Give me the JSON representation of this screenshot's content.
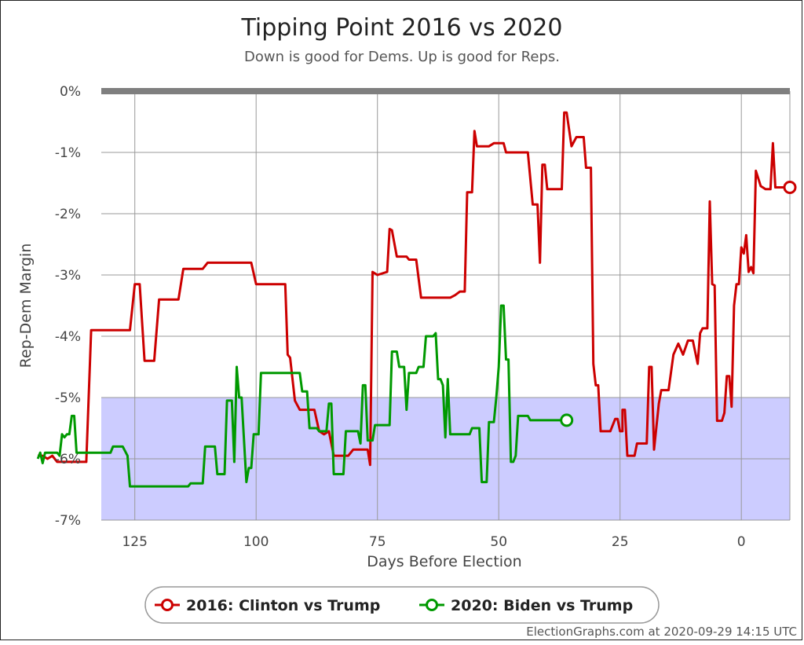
{
  "chart_data": {
    "type": "line",
    "title": "Tipping Point 2016 vs 2020",
    "subtitle": "Down is good for Dems. Up is good for Reps.",
    "xlabel": "Days Before Election",
    "ylabel": "Rep-Dem Margin",
    "xlim": [
      145,
      0
    ],
    "ylim": [
      -7,
      0
    ],
    "x_ticks": [
      {
        "value": 125,
        "label": "125"
      },
      {
        "value": 100,
        "label": "100"
      },
      {
        "value": 75,
        "label": "75"
      },
      {
        "value": 50,
        "label": "50"
      },
      {
        "value": 25,
        "label": "25"
      },
      {
        "value": 0,
        "label": "0"
      }
    ],
    "y_ticks": [
      {
        "value": 0,
        "label": "0%"
      },
      {
        "value": -1,
        "label": "-1%"
      },
      {
        "value": -2,
        "label": "-2%"
      },
      {
        "value": -3,
        "label": "-3%"
      },
      {
        "value": -4,
        "label": "-4%"
      },
      {
        "value": -5,
        "label": "-5%"
      },
      {
        "value": -6,
        "label": "-6%"
      },
      {
        "value": -7,
        "label": "-7%"
      }
    ],
    "shaded_band": {
      "from": -5,
      "to": -7,
      "color": "#ccccff"
    },
    "zero_line_color": "#7f7f7f",
    "grid": true,
    "legend_position": "bottom-center",
    "series": [
      {
        "name": "2016: Clinton vs Trump",
        "color": "#cc0000",
        "points": [
          [
            145,
            -5.95
          ],
          [
            144,
            -5.95
          ],
          [
            143,
            -6.0
          ],
          [
            142,
            -5.95
          ],
          [
            141,
            -6.05
          ],
          [
            140,
            -6.05
          ],
          [
            138,
            -6.05
          ],
          [
            137,
            -6.05
          ],
          [
            135,
            -6.05
          ],
          [
            134,
            -3.9
          ],
          [
            131,
            -3.9
          ],
          [
            127,
            -3.9
          ],
          [
            126,
            -3.9
          ],
          [
            125,
            -3.15
          ],
          [
            124,
            -3.15
          ],
          [
            123,
            -4.4
          ],
          [
            122,
            -4.4
          ],
          [
            121,
            -4.4
          ],
          [
            120,
            -3.4
          ],
          [
            119,
            -3.4
          ],
          [
            116,
            -3.4
          ],
          [
            115,
            -2.9
          ],
          [
            112,
            -2.9
          ],
          [
            111,
            -2.9
          ],
          [
            110,
            -2.8
          ],
          [
            105,
            -2.8
          ],
          [
            101,
            -2.8
          ],
          [
            100,
            -3.15
          ],
          [
            94,
            -3.15
          ],
          [
            93.5,
            -4.3
          ],
          [
            93,
            -4.35
          ],
          [
            92,
            -5.05
          ],
          [
            91,
            -5.2
          ],
          [
            88,
            -5.2
          ],
          [
            87,
            -5.55
          ],
          [
            86,
            -5.6
          ],
          [
            85,
            -5.55
          ],
          [
            84,
            -5.95
          ],
          [
            81,
            -5.95
          ],
          [
            80,
            -5.85
          ],
          [
            77,
            -5.85
          ],
          [
            76.5,
            -6.1
          ],
          [
            76,
            -2.95
          ],
          [
            75,
            -3.0
          ],
          [
            73,
            -2.95
          ],
          [
            72.5,
            -2.25
          ],
          [
            72,
            -2.27
          ],
          [
            71,
            -2.7
          ],
          [
            69,
            -2.7
          ],
          [
            68.5,
            -2.75
          ],
          [
            67,
            -2.75
          ],
          [
            66,
            -3.37
          ],
          [
            60,
            -3.37
          ],
          [
            59,
            -3.33
          ],
          [
            58,
            -3.27
          ],
          [
            57,
            -3.27
          ],
          [
            56.5,
            -1.65
          ],
          [
            55.5,
            -1.65
          ],
          [
            55,
            -0.65
          ],
          [
            54.5,
            -0.9
          ],
          [
            52,
            -0.9
          ],
          [
            51,
            -0.85
          ],
          [
            49,
            -0.85
          ],
          [
            48.5,
            -1.0
          ],
          [
            46,
            -1.0
          ],
          [
            45,
            -1.0
          ],
          [
            44,
            -1.0
          ],
          [
            43,
            -1.85
          ],
          [
            42,
            -1.85
          ],
          [
            41.5,
            -2.8
          ],
          [
            41,
            -1.2
          ],
          [
            40.5,
            -1.2
          ],
          [
            40,
            -1.6
          ],
          [
            37,
            -1.6
          ],
          [
            36.5,
            -0.35
          ],
          [
            36,
            -0.35
          ],
          [
            35,
            -0.9
          ],
          [
            34,
            -0.75
          ],
          [
            32.5,
            -0.75
          ],
          [
            32,
            -1.25
          ],
          [
            31,
            -1.25
          ],
          [
            30.5,
            -4.45
          ],
          [
            30,
            -4.8
          ],
          [
            29.5,
            -4.8
          ],
          [
            29,
            -5.55
          ],
          [
            27.5,
            -5.55
          ],
          [
            27,
            -5.55
          ],
          [
            26,
            -5.35
          ],
          [
            25.5,
            -5.35
          ],
          [
            25,
            -5.55
          ],
          [
            24.5,
            -5.55
          ],
          [
            24.5,
            -5.2
          ],
          [
            24,
            -5.2
          ],
          [
            23.5,
            -5.95
          ],
          [
            22,
            -5.95
          ],
          [
            21.5,
            -5.75
          ],
          [
            19.5,
            -5.75
          ],
          [
            19,
            -4.5
          ],
          [
            18.5,
            -4.5
          ],
          [
            18,
            -5.85
          ],
          [
            17,
            -5.1
          ],
          [
            16.5,
            -4.88
          ],
          [
            15,
            -4.88
          ],
          [
            14,
            -4.3
          ],
          [
            13,
            -4.12
          ],
          [
            12,
            -4.3
          ],
          [
            11,
            -4.07
          ],
          [
            10,
            -4.07
          ],
          [
            9,
            -4.45
          ],
          [
            8.5,
            -3.95
          ],
          [
            8,
            -3.87
          ],
          [
            7.5,
            -3.87
          ],
          [
            7,
            -3.87
          ],
          [
            6.5,
            -1.8
          ],
          [
            6,
            -3.15
          ],
          [
            5.5,
            -3.17
          ],
          [
            5,
            -5.38
          ],
          [
            4,
            -5.38
          ],
          [
            3.5,
            -5.25
          ],
          [
            3,
            -4.65
          ],
          [
            2.5,
            -4.65
          ],
          [
            2,
            -5.15
          ],
          [
            1.5,
            -3.5
          ],
          [
            1,
            -3.15
          ],
          [
            0.5,
            -3.15
          ],
          [
            0,
            -2.55
          ],
          [
            -0.5,
            -2.65
          ],
          [
            -1,
            -2.35
          ],
          [
            -1.5,
            -2.95
          ],
          [
            -2,
            -2.87
          ],
          [
            -2.5,
            -2.97
          ],
          [
            -3,
            -1.3
          ],
          [
            -4,
            -1.55
          ],
          [
            -5,
            -1.6
          ],
          [
            -6,
            -1.6
          ],
          [
            -6.5,
            -0.85
          ],
          [
            -7,
            -1.57
          ],
          [
            -9,
            -1.57
          ],
          [
            -10,
            -1.57
          ]
        ],
        "end_marker": [
          -10,
          -1.57
        ]
      },
      {
        "name": "2020: Biden vs Trump",
        "color": "#009900",
        "points": [
          [
            145,
            -6.0
          ],
          [
            144.5,
            -5.9
          ],
          [
            144,
            -6.07
          ],
          [
            143.5,
            -5.9
          ],
          [
            141,
            -5.9
          ],
          [
            140.5,
            -5.95
          ],
          [
            140,
            -5.6
          ],
          [
            139.5,
            -5.65
          ],
          [
            139,
            -5.6
          ],
          [
            138.5,
            -5.6
          ],
          [
            138,
            -5.3
          ],
          [
            137.5,
            -5.3
          ],
          [
            137,
            -5.9
          ],
          [
            132,
            -5.9
          ],
          [
            130,
            -5.9
          ],
          [
            129.5,
            -5.8
          ],
          [
            127.5,
            -5.8
          ],
          [
            126.5,
            -5.95
          ],
          [
            126,
            -6.45
          ],
          [
            120,
            -6.45
          ],
          [
            114,
            -6.45
          ],
          [
            113.5,
            -6.4
          ],
          [
            111,
            -6.4
          ],
          [
            110.5,
            -5.8
          ],
          [
            108.5,
            -5.8
          ],
          [
            108,
            -6.25
          ],
          [
            106.5,
            -6.25
          ],
          [
            106,
            -5.05
          ],
          [
            105,
            -5.05
          ],
          [
            104.5,
            -6.05
          ],
          [
            104,
            -4.5
          ],
          [
            103.5,
            -5.0
          ],
          [
            103,
            -5.0
          ],
          [
            102,
            -6.38
          ],
          [
            101.5,
            -6.15
          ],
          [
            101,
            -6.15
          ],
          [
            100.5,
            -5.6
          ],
          [
            99.5,
            -5.6
          ],
          [
            99,
            -4.6
          ],
          [
            98,
            -4.6
          ],
          [
            91,
            -4.6
          ],
          [
            90.5,
            -4.9
          ],
          [
            89.5,
            -4.9
          ],
          [
            89,
            -5.5
          ],
          [
            87.5,
            -5.5
          ],
          [
            87,
            -5.55
          ],
          [
            85.5,
            -5.55
          ],
          [
            85,
            -5.1
          ],
          [
            84.5,
            -5.1
          ],
          [
            84,
            -6.25
          ],
          [
            83.5,
            -6.25
          ],
          [
            82,
            -6.25
          ],
          [
            81.5,
            -5.55
          ],
          [
            80,
            -5.55
          ],
          [
            79,
            -5.55
          ],
          [
            78.5,
            -5.75
          ],
          [
            78,
            -4.8
          ],
          [
            77.5,
            -4.8
          ],
          [
            77,
            -5.7
          ],
          [
            76,
            -5.7
          ],
          [
            75.5,
            -5.45
          ],
          [
            72.5,
            -5.45
          ],
          [
            72,
            -4.25
          ],
          [
            71,
            -4.25
          ],
          [
            70.5,
            -4.5
          ],
          [
            69.5,
            -4.5
          ],
          [
            69,
            -5.2
          ],
          [
            68.5,
            -4.6
          ],
          [
            67.5,
            -4.6
          ],
          [
            67,
            -4.6
          ],
          [
            66.5,
            -4.5
          ],
          [
            65.5,
            -4.5
          ],
          [
            65,
            -4.0
          ],
          [
            63.5,
            -4.0
          ],
          [
            63,
            -3.95
          ],
          [
            62.5,
            -4.7
          ],
          [
            62,
            -4.7
          ],
          [
            61.5,
            -4.8
          ],
          [
            61,
            -5.65
          ],
          [
            60.5,
            -4.7
          ],
          [
            60,
            -5.6
          ],
          [
            56.5,
            -5.6
          ],
          [
            56,
            -5.6
          ],
          [
            55.5,
            -5.5
          ],
          [
            54,
            -5.5
          ],
          [
            53.5,
            -6.38
          ],
          [
            52.5,
            -6.38
          ],
          [
            52,
            -5.4
          ],
          [
            51,
            -5.4
          ],
          [
            50.5,
            -5.0
          ],
          [
            50,
            -4.5
          ],
          [
            49.5,
            -3.5
          ],
          [
            49,
            -3.5
          ],
          [
            48.5,
            -4.38
          ],
          [
            48,
            -4.38
          ],
          [
            47.5,
            -6.05
          ],
          [
            47,
            -6.05
          ],
          [
            46.5,
            -5.95
          ],
          [
            46,
            -5.3
          ],
          [
            44,
            -5.3
          ],
          [
            43.5,
            -5.37
          ],
          [
            42,
            -5.37
          ],
          [
            38,
            -5.37
          ],
          [
            36,
            -5.37
          ]
        ],
        "end_marker": [
          36,
          -5.37
        ]
      }
    ]
  },
  "footer": {
    "credit": "ElectionGraphs.com at 2020-09-29 14:15 UTC"
  }
}
